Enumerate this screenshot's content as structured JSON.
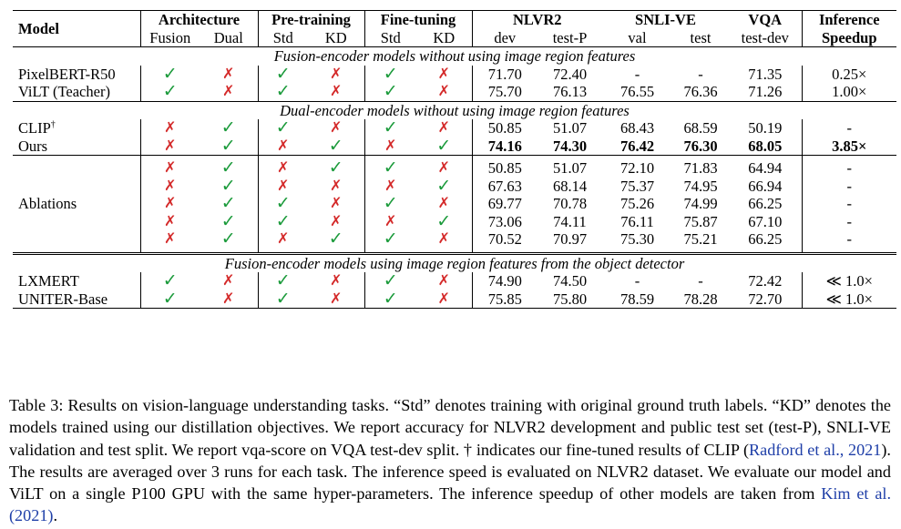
{
  "header": {
    "model": "Model",
    "architecture": "Architecture",
    "fusion": "Fusion",
    "dual": "Dual",
    "pretraining": "Pre-training",
    "finetuning": "Fine-tuning",
    "std": "Std",
    "kd": "KD",
    "nlvr2": "NLVR2",
    "dev": "dev",
    "testp": "test-P",
    "snlive": "SNLI-VE",
    "val": "val",
    "test": "test",
    "vqa": "VQA",
    "testdev": "test-dev",
    "inference": "Inference",
    "speedup": "Speedup"
  },
  "glyphs": {
    "check": "✓",
    "cross": "✗"
  },
  "sections": {
    "s1": "Fusion-encoder models without using image region features",
    "s2": "Dual-encoder models without using image region features",
    "s4": "Fusion-encoder models using image region features from the object detector"
  },
  "rows": {
    "pixelbert": {
      "model": "PixelBERT-R50",
      "v": [
        "71.70",
        "72.40",
        "-",
        "-",
        "71.35"
      ],
      "speed": "0.25×"
    },
    "vilt": {
      "model": "ViLT (Teacher)",
      "v": [
        "75.70",
        "76.13",
        "76.55",
        "76.36",
        "71.26"
      ],
      "speed": "1.00×"
    },
    "clip": {
      "model": "CLIP",
      "dagger": "†",
      "v": [
        "50.85",
        "51.07",
        "68.43",
        "68.59",
        "50.19"
      ],
      "speed": "-"
    },
    "ours": {
      "model": "Ours",
      "v": [
        "74.16",
        "74.30",
        "76.42",
        "76.30",
        "68.05"
      ],
      "speed": "3.85×"
    },
    "ablation_label": "Ablations",
    "ab1": {
      "v": [
        "50.85",
        "51.07",
        "72.10",
        "71.83",
        "64.94"
      ],
      "speed": "-"
    },
    "ab2": {
      "v": [
        "67.63",
        "68.14",
        "75.37",
        "74.95",
        "66.94"
      ],
      "speed": "-"
    },
    "ab3": {
      "v": [
        "69.77",
        "70.78",
        "75.26",
        "74.99",
        "66.25"
      ],
      "speed": "-"
    },
    "ab4": {
      "v": [
        "73.06",
        "74.11",
        "76.11",
        "75.87",
        "67.10"
      ],
      "speed": "-"
    },
    "ab5": {
      "v": [
        "70.52",
        "70.97",
        "75.30",
        "75.21",
        "66.25"
      ],
      "speed": "-"
    },
    "lxmert": {
      "model": "LXMERT",
      "v": [
        "74.90",
        "74.50",
        "-",
        "-",
        "72.42"
      ],
      "speed": "≪ 1.0×"
    },
    "uniter": {
      "model": "UNITER-Base",
      "v": [
        "75.85",
        "75.80",
        "78.59",
        "78.28",
        "72.70"
      ],
      "speed": "≪ 1.0×"
    }
  },
  "caption": {
    "p1": "Table 3: Results on vision-language understanding tasks. “Std” denotes training with original ground truth labels. “KD” denotes the models trained using our distillation objectives. We report accuracy for NLVR2 development and public test set (test-P), SNLI-VE validation and test split. We report vqa-score on VQA test-dev split. † indicates our fine-tuned results of CLIP (",
    "cite1": "Radford et al., 2021",
    "p2": "). The results are averaged over 3 runs for each task. The inference speed is evaluated on NLVR2 dataset. We evaluate our model and ViLT on a single P100 GPU with the same hyper-parameters. The inference speedup of other models are taken from ",
    "cite2": "Kim et al. (2021)",
    "p3": "."
  }
}
